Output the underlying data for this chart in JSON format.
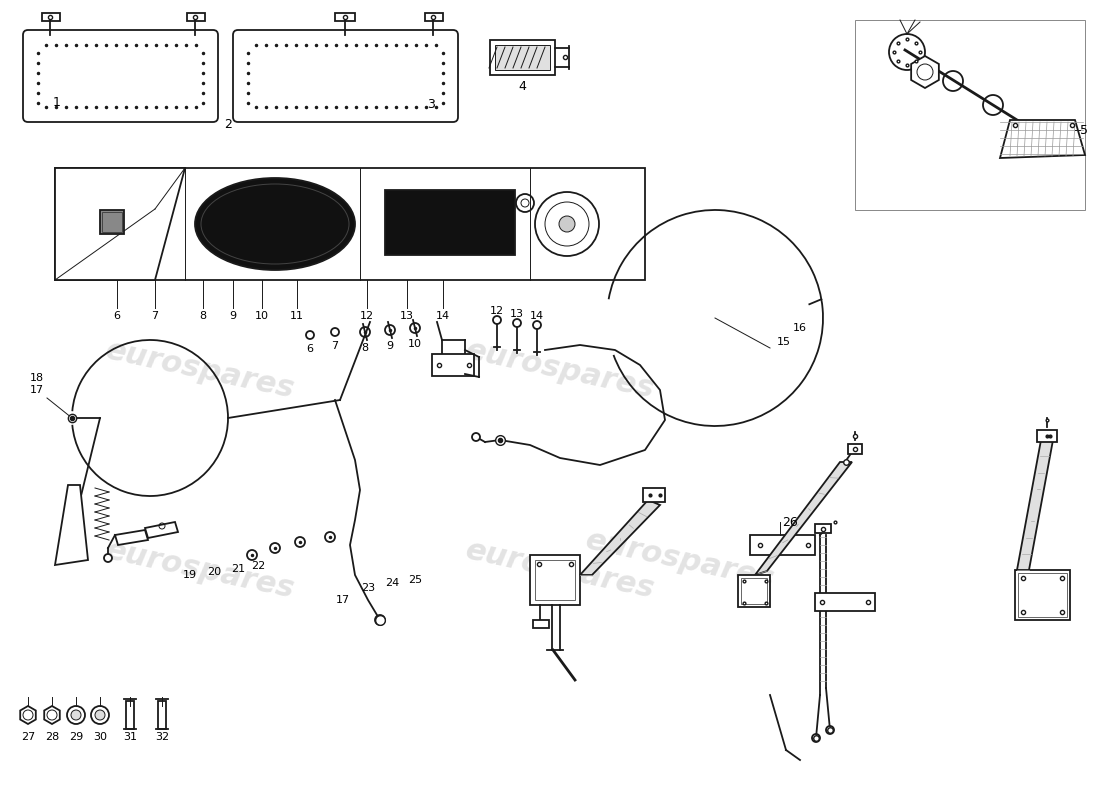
{
  "bg_color": "#ffffff",
  "line_color": "#1a1a1a",
  "watermark_color": "#cccccc",
  "watermark_text": "eurospares",
  "lw_main": 1.3,
  "lw_thin": 0.7,
  "lw_thick": 2.0
}
